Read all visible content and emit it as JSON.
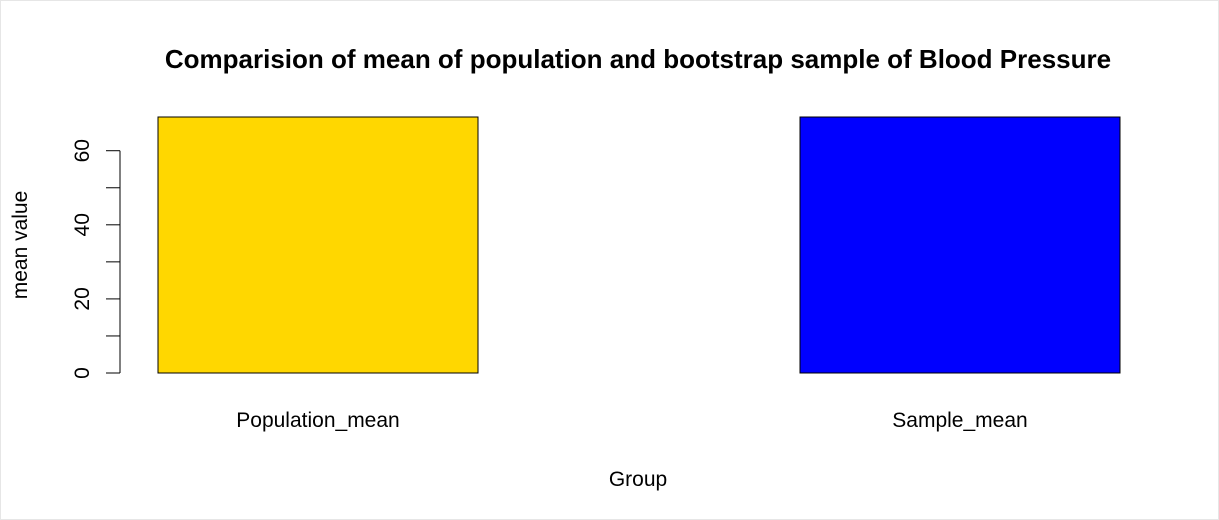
{
  "chart_data": {
    "type": "bar",
    "title": "Comparision of mean of population and bootstrap sample of Blood Pressure",
    "xlabel": "Group",
    "ylabel": "mean value",
    "categories": [
      "Population_mean",
      "Sample_mean"
    ],
    "values": [
      69.1,
      69.1
    ],
    "colors": [
      "#FFD700",
      "#0000FF"
    ],
    "ylim": [
      0,
      69.1
    ],
    "yticks": [
      0,
      20,
      40,
      60
    ],
    "yminor_ticks": [
      10,
      30,
      50
    ],
    "grid": false,
    "legend": "none"
  }
}
